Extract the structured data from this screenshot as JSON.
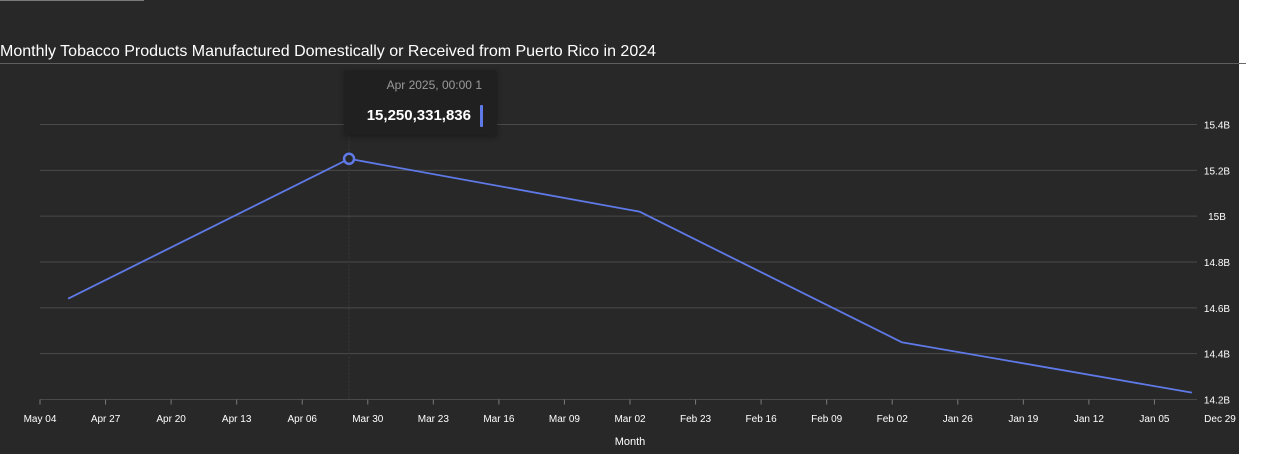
{
  "chart_data": {
    "type": "line",
    "title": "Monthly Tobacco Products Manufactured Domestically or Received from Puerto Rico in 2024",
    "xlabel": "Month",
    "ylabel": "",
    "x_tick_labels": [
      "May 04",
      "Apr 27",
      "Apr 20",
      "Apr 13",
      "Apr 06",
      "Mar 30",
      "Mar 23",
      "Mar 16",
      "Mar 09",
      "Mar 02",
      "Feb 23",
      "Feb 16",
      "Feb 09",
      "Feb 02",
      "Jan 26",
      "Jan 19",
      "Jan 12",
      "Jan 05",
      "Dec 29"
    ],
    "x_axis_reversed": true,
    "y_tick_labels": [
      "15.4B",
      "15.2B",
      "15B",
      "14.8B",
      "14.6B",
      "14.4B",
      "14.2B"
    ],
    "y_ticks": [
      15400000000,
      15200000000,
      15000000000,
      14800000000,
      14600000000,
      14400000000,
      14200000000
    ],
    "ylim": [
      14200000000,
      15400000000
    ],
    "y_axis_position": "right",
    "grid": true,
    "series": [
      {
        "x": [
          "2025-05-01",
          "2025-04-01",
          "2025-03-01",
          "2025-02-01",
          "2025-01-01"
        ],
        "values": [
          14640000000,
          15250331836,
          15020000000,
          14450000000,
          14230000000
        ]
      }
    ],
    "tooltip": {
      "date": "Apr 2025, 00:00 1",
      "value": "15,250,331,836"
    },
    "colors": {
      "line": "#5f7ae8",
      "background": "#282828",
      "grid": "#4a4a4a",
      "text": "#ffffff"
    }
  }
}
